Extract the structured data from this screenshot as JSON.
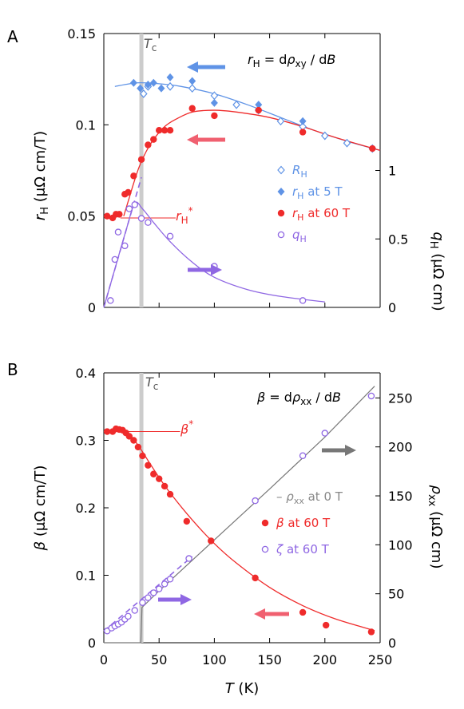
{
  "figure": {
    "background": "#ffffff"
  },
  "chart_data": [
    {
      "type": "scatter",
      "panel_label": "A",
      "ylabel": "r_H (μΩ cm/T)",
      "ylabel_parts": {
        "sym": "r",
        "sub": "H",
        "unit": " (μΩ cm/T)"
      },
      "y2label": "q_H (μΩ cm)",
      "y2label_parts": {
        "sym": "q",
        "sub": "H",
        "unit": " (μΩ cm)"
      },
      "equation": "r_H = dρ_xy / dB",
      "tc_label": "T_c",
      "tc_value": 34,
      "xlim": [
        0,
        250
      ],
      "ylim": [
        0,
        0.15
      ],
      "y2lim": [
        0,
        2.0
      ],
      "yticks": [
        0,
        0.05,
        0.1,
        0.15
      ],
      "ytick_labels": [
        "0",
        "0.05",
        "0.1",
        "0.15"
      ],
      "y2ticks": [
        0,
        0.5,
        1
      ],
      "y2tick_labels": [
        "0",
        "0.5",
        "1"
      ],
      "marker_label": "r_H*",
      "marker_value": 0.049,
      "colors": {
        "blue": "#5f93e6",
        "red": "#ef2b2b",
        "purple": "#8f67e3",
        "tc": "#cccccc"
      },
      "legend": [
        {
          "label": "R_H",
          "sym": "R",
          "sub": "H",
          "rest": "",
          "color": "#5f93e6",
          "marker": "open-diamond"
        },
        {
          "label": "r_H at 5 T",
          "sym": "r",
          "sub": "H",
          "rest": " at 5 T",
          "color": "#5f93e6",
          "marker": "filled-diamond"
        },
        {
          "label": "r_H at 60 T",
          "sym": "r",
          "sub": "H",
          "rest": " at 60 T",
          "color": "#ef2b2b",
          "marker": "filled-circle"
        },
        {
          "label": "q_H",
          "sym": "q",
          "sub": "H",
          "rest": "",
          "color": "#8f67e3",
          "marker": "open-circle"
        }
      ],
      "series": [
        {
          "name": "R_H",
          "axis": "left",
          "marker": "open-diamond",
          "color": "#5f93e6",
          "x": [
            36,
            40,
            60,
            80,
            100,
            120,
            140,
            160,
            180,
            200,
            220,
            243
          ],
          "y": [
            0.117,
            0.121,
            0.121,
            0.12,
            0.116,
            0.111,
            0.108,
            0.102,
            0.099,
            0.094,
            0.09,
            0.087
          ]
        },
        {
          "name": "r_H at 5 T",
          "axis": "left",
          "marker": "filled-diamond",
          "color": "#5f93e6",
          "x": [
            27,
            33,
            40,
            45,
            52,
            60,
            80,
            100,
            140,
            180,
            243
          ],
          "y": [
            0.123,
            0.12,
            0.122,
            0.123,
            0.12,
            0.126,
            0.124,
            0.112,
            0.111,
            0.102,
            0.087
          ]
        },
        {
          "name": "r_H at 60 T",
          "axis": "left",
          "marker": "filled-circle",
          "color": "#ef2b2b",
          "x": [
            3,
            8,
            11,
            14,
            19,
            22,
            27,
            34,
            40,
            45,
            50,
            55,
            60,
            80,
            100,
            140,
            180,
            243
          ],
          "y": [
            0.05,
            0.049,
            0.051,
            0.051,
            0.062,
            0.063,
            0.072,
            0.081,
            0.089,
            0.092,
            0.097,
            0.097,
            0.097,
            0.109,
            0.105,
            0.108,
            0.096,
            0.087
          ]
        },
        {
          "name": "q_H",
          "axis": "right",
          "marker": "open-circle",
          "color": "#8f67e3",
          "x": [
            6,
            10,
            13,
            19,
            23,
            28,
            34,
            40,
            60,
            100,
            180
          ],
          "y": [
            0.05,
            0.35,
            0.55,
            0.45,
            0.72,
            0.75,
            0.65,
            0.62,
            0.52,
            0.3,
            0.05
          ]
        }
      ],
      "fits": [
        {
          "label": "R_H fit",
          "color": "#5f93e6",
          "x": [
            10,
            30,
            50,
            70,
            100,
            130,
            160,
            190,
            220,
            250
          ],
          "y": [
            0.121,
            0.123,
            0.1225,
            0.121,
            0.117,
            0.111,
            0.104,
            0.097,
            0.091,
            0.086
          ]
        },
        {
          "label": "r_H 60 T fit",
          "color": "#ef2b2b",
          "x": [
            18,
            22,
            27,
            32,
            38,
            45,
            55,
            65,
            80,
            100,
            120,
            150,
            180,
            210,
            250
          ],
          "y": [
            0.05,
            0.058,
            0.068,
            0.077,
            0.085,
            0.092,
            0.099,
            0.103,
            0.107,
            0.108,
            0.107,
            0.104,
            0.099,
            0.093,
            0.086
          ]
        },
        {
          "label": "q_H fit",
          "color": "#8f67e3",
          "x": [
            0,
            10,
            20,
            28,
            35,
            45,
            60,
            80,
            100,
            130,
            160,
            200
          ],
          "y": [
            0,
            0.28,
            0.56,
            0.76,
            0.72,
            0.62,
            0.48,
            0.33,
            0.22,
            0.13,
            0.08,
            0.04
          ]
        },
        {
          "label": "q_H slope",
          "color": "#8f67e3",
          "dashed": true,
          "x": [
            0,
            34
          ],
          "y": [
            0,
            0.95
          ]
        }
      ]
    },
    {
      "type": "scatter",
      "panel_label": "B",
      "xlabel": "T (K)",
      "xlabel_parts": {
        "sym": "T",
        "unit": " (K)"
      },
      "ylabel": "β (μΩ cm/T)",
      "ylabel_parts": {
        "sym": "β",
        "unit": " (μΩ cm/T)"
      },
      "y2label": "ρ_xx (μΩ cm)",
      "y2label_parts": {
        "sym": "ρ",
        "sub": "xx",
        "unit": " (μΩ cm)"
      },
      "equation": "β = dρ_xx / dB",
      "tc_label": "T_c",
      "tc_value": 34,
      "xlim": [
        0,
        250
      ],
      "xticks": [
        0,
        50,
        100,
        150,
        200,
        250
      ],
      "xtick_labels": [
        "0",
        "50",
        "100",
        "150",
        "200",
        "250"
      ],
      "ylim": [
        0,
        0.4
      ],
      "yticks": [
        0,
        0.1,
        0.2,
        0.3,
        0.4
      ],
      "ytick_labels": [
        "0",
        "0.1",
        "0.2",
        "0.3",
        "0.4"
      ],
      "y2lim": [
        0,
        275.6
      ],
      "y2ticks": [
        0,
        50,
        100,
        150,
        200,
        250
      ],
      "y2tick_labels": [
        "0",
        "50",
        "100",
        "150",
        "200",
        "250"
      ],
      "marker_label": "β*",
      "marker_value": 0.313,
      "colors": {
        "gray": "#777777",
        "red": "#ef2b2b",
        "purple": "#8f67e3",
        "tc": "#cccccc"
      },
      "legend": [
        {
          "label": "– ρ_xx at 0 T",
          "sym": "ρ",
          "sub": "xx",
          "pre": "– ",
          "rest": " at 0 T",
          "color": "#888888",
          "marker": "none"
        },
        {
          "label": "β at 60 T",
          "sym": "β",
          "sub": "",
          "rest": " at 60 T",
          "color": "#ef2b2b",
          "marker": "filled-circle"
        },
        {
          "label": "ζ at 60 T",
          "sym": "ζ",
          "sub": "",
          "rest": " at 60 T",
          "color": "#8f67e3",
          "marker": "open-circle"
        }
      ],
      "series": [
        {
          "name": "ρ_xx at 0 T",
          "axis": "right",
          "kind": "line",
          "color": "#777777",
          "x": [
            0,
            31,
            33.5,
            34.5,
            50,
            100,
            150,
            200,
            245
          ],
          "y": [
            0,
            0,
            0,
            36,
            53,
            105,
            157,
            210,
            262
          ]
        },
        {
          "name": "β at 60 T",
          "axis": "left",
          "marker": "filled-circle",
          "color": "#ef2b2b",
          "x": [
            3,
            8,
            11,
            14,
            17,
            20,
            23,
            27,
            31,
            35,
            40,
            45,
            50,
            55,
            60,
            75,
            97,
            137,
            180,
            201,
            242
          ],
          "y": [
            0.313,
            0.313,
            0.317,
            0.316,
            0.315,
            0.311,
            0.306,
            0.3,
            0.29,
            0.277,
            0.263,
            0.25,
            0.243,
            0.232,
            0.22,
            0.18,
            0.151,
            0.096,
            0.045,
            0.026,
            0.016
          ]
        },
        {
          "name": "ζ at 60 T",
          "axis": "right",
          "marker": "open-circle",
          "color": "#8f67e3",
          "x": [
            3,
            7,
            10,
            13,
            16,
            19,
            22,
            28,
            35,
            40,
            45,
            50,
            55,
            60,
            77,
            137,
            180,
            200,
            242
          ],
          "y": [
            12,
            15,
            17,
            19,
            21,
            24,
            27,
            33,
            41,
            46,
            51,
            55,
            60,
            65,
            86,
            145,
            191,
            214,
            252
          ]
        }
      ],
      "fits": [
        {
          "label": "β fit",
          "color": "#ef2b2b",
          "x": [
            3,
            15,
            25,
            30,
            35,
            40,
            50,
            60,
            80,
            100,
            120,
            150,
            180,
            210,
            245
          ],
          "y": [
            0.313,
            0.313,
            0.305,
            0.295,
            0.283,
            0.27,
            0.245,
            0.222,
            0.182,
            0.147,
            0.118,
            0.082,
            0.055,
            0.035,
            0.018
          ]
        },
        {
          "label": "ζ slope",
          "color": "#8f67e3",
          "dashed": true,
          "x": [
            0,
            80
          ],
          "y": [
            12,
            88
          ]
        }
      ],
      "arrows": {
        "purple_color": "#8f67e3",
        "gray_color": "#777777",
        "red_color": "#f06070"
      }
    }
  ]
}
